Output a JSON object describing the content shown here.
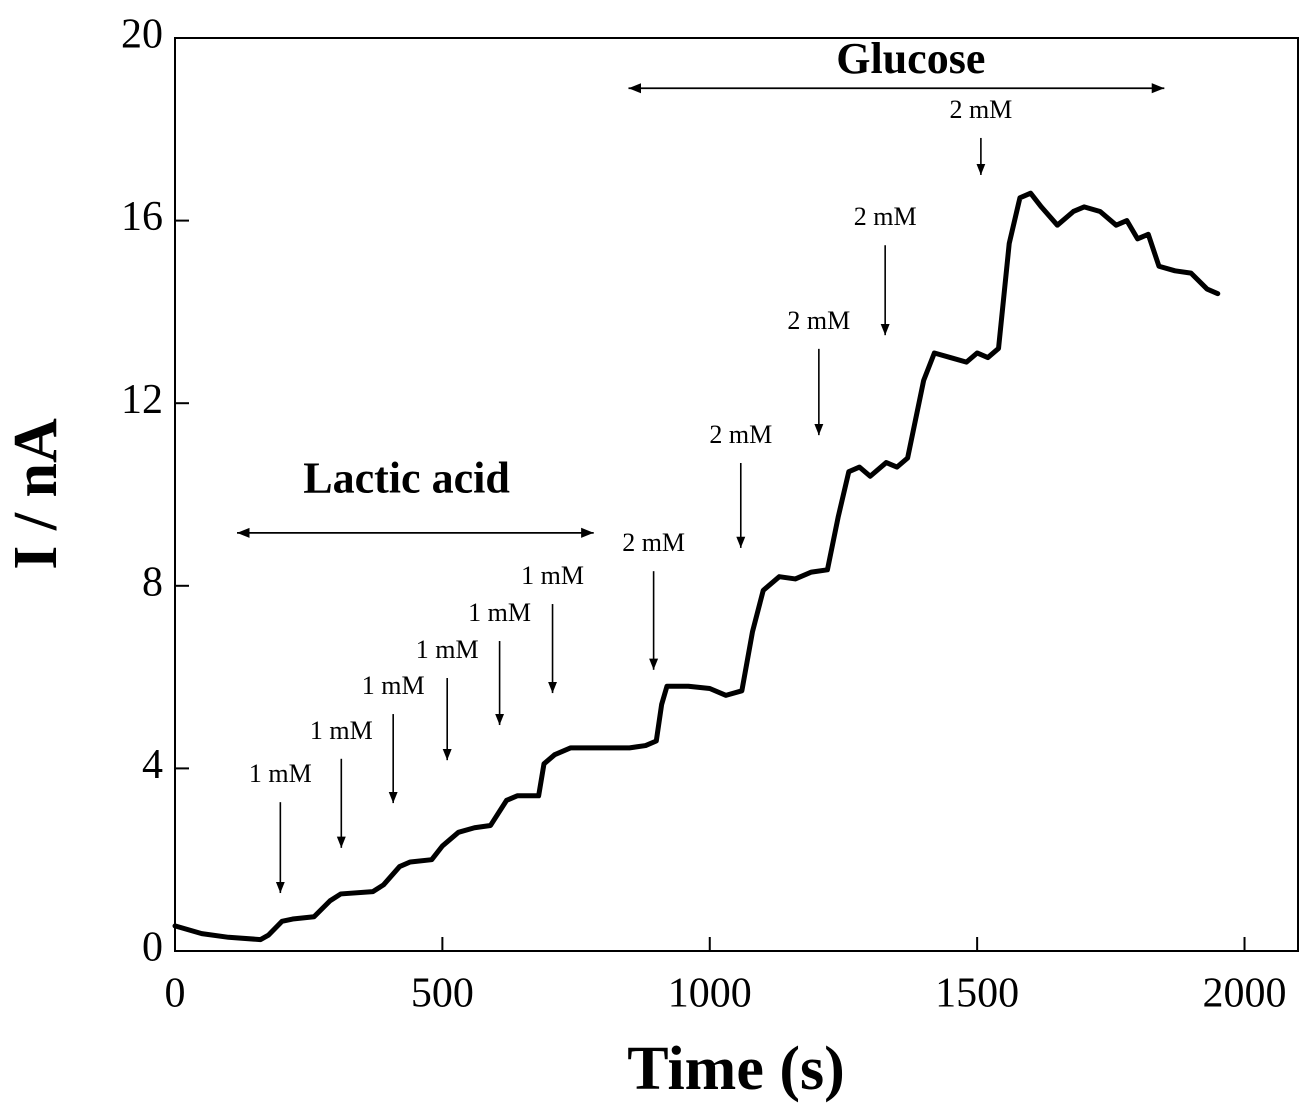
{
  "chart_data": {
    "type": "line",
    "x_label": "Time (s)",
    "y_label": "I / nA",
    "xlim": [
      0,
      2100
    ],
    "ylim": [
      0,
      20
    ],
    "xticks": [
      0,
      500,
      1000,
      1500,
      2000
    ],
    "yticks": [
      0,
      4,
      8,
      12,
      16,
      20
    ],
    "color": "#000000",
    "x": [
      0,
      50,
      100,
      160,
      175,
      200,
      220,
      260,
      290,
      310,
      370,
      390,
      420,
      440,
      480,
      500,
      530,
      560,
      590,
      620,
      640,
      680,
      690,
      710,
      740,
      800,
      850,
      880,
      900,
      910,
      920,
      960,
      1000,
      1030,
      1060,
      1080,
      1100,
      1130,
      1160,
      1190,
      1220,
      1240,
      1260,
      1280,
      1300,
      1330,
      1350,
      1370,
      1400,
      1420,
      1450,
      1480,
      1500,
      1520,
      1540,
      1560,
      1580,
      1600,
      1620,
      1650,
      1680,
      1700,
      1730,
      1760,
      1780,
      1800,
      1820,
      1840,
      1870,
      1900,
      1930,
      1950
    ],
    "values": [
      0.55,
      0.38,
      0.3,
      0.25,
      0.35,
      0.65,
      0.7,
      0.75,
      1.1,
      1.25,
      1.3,
      1.45,
      1.85,
      1.95,
      2.0,
      2.3,
      2.6,
      2.7,
      2.75,
      3.3,
      3.4,
      3.4,
      4.1,
      4.3,
      4.45,
      4.45,
      4.45,
      4.5,
      4.6,
      5.4,
      5.8,
      5.8,
      5.75,
      5.6,
      5.7,
      7.0,
      7.9,
      8.2,
      8.15,
      8.3,
      8.35,
      9.5,
      10.5,
      10.6,
      10.4,
      10.7,
      10.6,
      10.8,
      12.5,
      13.1,
      13.0,
      12.9,
      13.1,
      13.0,
      13.2,
      15.5,
      16.5,
      16.6,
      16.3,
      15.9,
      16.2,
      16.3,
      16.2,
      15.9,
      16.0,
      15.6,
      15.7,
      15.0,
      14.9,
      14.85,
      14.5,
      14.4
    ],
    "annotations": [
      {
        "text": "1 mM",
        "x": 197,
        "y": 1.27,
        "text_y": 3.83
      },
      {
        "text": "1 mM",
        "x": 311,
        "y": 2.26,
        "text_y": 4.78
      },
      {
        "text": "1 mM",
        "x": 408,
        "y": 3.24,
        "text_y": 5.76
      },
      {
        "text": "1 mM",
        "x": 509,
        "y": 4.18,
        "text_y": 6.55
      },
      {
        "text": "1 mM",
        "x": 607,
        "y": 4.95,
        "text_y": 7.36
      },
      {
        "text": "1 mM",
        "x": 706,
        "y": 5.65,
        "text_y": 8.17
      },
      {
        "text": "2 mM",
        "x": 895,
        "y": 6.16,
        "text_y": 8.89
      },
      {
        "text": "2 mM",
        "x": 1058,
        "y": 8.83,
        "text_y": 11.26
      },
      {
        "text": "2 mM",
        "x": 1204,
        "y": 11.3,
        "text_y": 13.76
      },
      {
        "text": "2 mM",
        "x": 1328,
        "y": 13.49,
        "text_y": 16.03
      },
      {
        "text": "2 mM",
        "x": 1507,
        "y": 17.0,
        "text_y": 18.38
      }
    ],
    "ranges": [
      {
        "text": "Lactic acid",
        "x1": 116,
        "x2": 783,
        "y": 9.16,
        "text_x": 433,
        "text_y": 10.27
      },
      {
        "text": "Glucose",
        "x1": 848,
        "x2": 1850,
        "y": 18.9,
        "text_x": 1376,
        "text_y": 19.45
      }
    ]
  }
}
